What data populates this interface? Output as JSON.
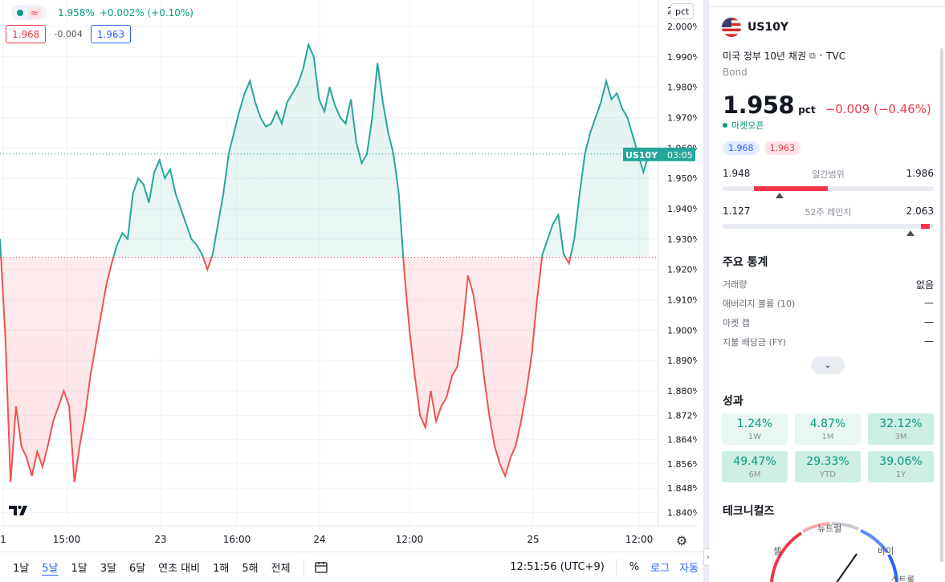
{
  "legend": {
    "wave_icon": "≈",
    "value": "1.958%",
    "change": "+0.002% (+0.10%)",
    "bid": "1.968",
    "spread": "-0.004",
    "ask": "1.963"
  },
  "price_axis": {
    "unit_button": "pct",
    "top_cut_label": "2",
    "current_tag_label": "US10Y",
    "current_tag_time": "03:05"
  },
  "chart_data": {
    "type": "area",
    "title": "",
    "ylabel": "",
    "y_ticks": [
      "2.000%",
      "1.990%",
      "1.980%",
      "1.970%",
      "1.960%",
      "1.950%",
      "1.940%",
      "1.930%",
      "1.920%",
      "1.910%",
      "1.900%",
      "1.890%",
      "1.880%",
      "1.872%",
      "1.864%",
      "1.856%",
      "1.848%",
      "1.840%"
    ],
    "x_ticks": [
      "1",
      "15:00",
      "23",
      "16:00",
      "24",
      "12:00",
      "25",
      "12:00"
    ],
    "baseline": 1.924,
    "current": 1.958,
    "ylim": [
      1.838,
      2.005
    ],
    "series": [
      {
        "values": [
          1.93,
          1.898,
          1.85,
          1.875,
          1.862,
          1.858,
          1.852,
          1.86,
          1.855,
          1.862,
          1.87,
          1.875,
          1.88,
          1.875,
          1.85,
          1.862,
          1.872,
          1.885,
          1.895,
          1.905,
          1.915,
          1.922,
          1.928,
          1.932,
          1.93,
          1.945,
          1.95,
          1.948,
          1.942,
          1.952,
          1.956,
          1.95,
          1.953,
          1.945,
          1.94,
          1.935,
          1.93,
          1.928,
          1.925,
          1.92,
          1.925,
          1.935,
          1.945,
          1.958,
          1.965,
          1.972,
          1.978,
          1.982,
          1.975,
          1.97,
          1.967,
          1.968,
          1.972,
          1.968,
          1.975,
          1.978,
          1.981,
          1.986,
          1.994,
          1.99,
          1.976,
          1.972,
          1.98,
          1.974,
          1.97,
          1.968,
          1.976,
          1.962,
          1.955,
          1.958,
          1.97,
          1.988,
          1.975,
          1.965,
          1.958,
          1.945,
          1.92,
          1.9,
          1.885,
          1.872,
          1.868,
          1.88,
          1.87,
          1.875,
          1.878,
          1.885,
          1.888,
          1.9,
          1.918,
          1.912,
          1.9,
          1.885,
          1.872,
          1.862,
          1.856,
          1.852,
          1.858,
          1.862,
          1.87,
          1.88,
          1.892,
          1.91,
          1.925,
          1.93,
          1.935,
          1.938,
          1.925,
          1.922,
          1.93,
          1.945,
          1.958,
          1.965,
          1.97,
          1.975,
          1.982,
          1.976,
          1.978,
          1.973,
          1.97,
          1.964,
          1.958,
          1.952,
          1.958
        ]
      }
    ]
  },
  "bottom_bar": {
    "ranges": [
      "1날",
      "5날",
      "1달",
      "3달",
      "6달",
      "연초 대비",
      "1해",
      "5해",
      "전체"
    ],
    "active_range": "5날",
    "clock": "12:51:56 (UTC+9)",
    "percent": "%",
    "log": "로그",
    "auto": "자동"
  },
  "panel": {
    "symbol": "US10Y",
    "description": "미국 정부 10년 채권",
    "exchange_sep": "•",
    "exchange": "TVC",
    "type": "Bond",
    "price": "1.958",
    "price_unit": "pct",
    "change": "−0.009 (−0.46%)",
    "market_status": "마켓오픈",
    "bid": "1.968",
    "ask": "1.963",
    "day_range": {
      "low": "1.948",
      "label": "일간범위",
      "high": "1.986",
      "fill_from": 0.15,
      "fill_to": 0.5,
      "marker": 0.27
    },
    "year_range": {
      "low": "1.127",
      "label": "52주 레인지",
      "high": "2.063",
      "fill_from": 0.94,
      "fill_to": 0.98,
      "marker": 0.89
    },
    "stats_title": "주요 통계",
    "stats": [
      {
        "label": "거래량",
        "value": "없음"
      },
      {
        "label": "애버리지 볼륨 (10)",
        "value": "—"
      },
      {
        "label": "마켓 캡",
        "value": "—"
      },
      {
        "label": "지불 배당금 (FY)",
        "value": "—"
      }
    ],
    "expand_icon": "⌄",
    "perf_title": "성과",
    "performance": [
      {
        "value": "1.24%",
        "label": "1W"
      },
      {
        "value": "4.87%",
        "label": "1M"
      },
      {
        "value": "32.12%",
        "label": "3M"
      },
      {
        "value": "49.47%",
        "label": "6M"
      },
      {
        "value": "29.33%",
        "label": "YTD"
      },
      {
        "value": "39.06%",
        "label": "1Y"
      }
    ],
    "tech_title": "테크니컬즈",
    "gauge": {
      "left": "셀",
      "top": "뉴트럴",
      "right": "바이",
      "bottom_right": "스트롱 바"
    }
  },
  "colors": {
    "up": "#089981",
    "line_up": "#26a69a",
    "down": "#f23645",
    "line_down": "#ef5350",
    "accent": "#2962ff"
  }
}
